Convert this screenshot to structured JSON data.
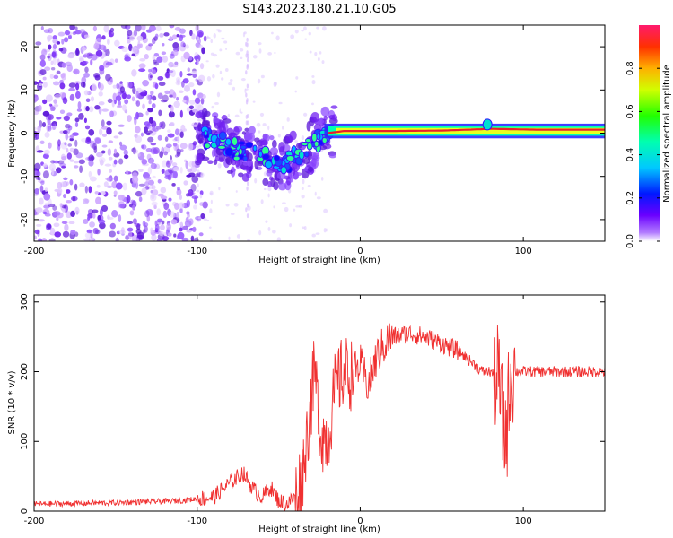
{
  "title": "S143.2023.180.21.10.G05",
  "colors": {
    "snr_line": "#f03030",
    "ridge": "#e8202a",
    "spectro_dot": "#7a20f0",
    "frame": "#000000"
  },
  "chart_data": [
    {
      "type": "heatmap",
      "xlabel": "Height of straight line (km)",
      "ylabel": "Frequency (Hz)",
      "xlim": [
        -200,
        150
      ],
      "ylim": [
        -25,
        25
      ],
      "xticks": [
        -200,
        -100,
        0,
        100
      ],
      "xtick_labels": [
        "-200",
        "-100",
        "0",
        "100"
      ],
      "yticks": [
        -20,
        -10,
        0,
        10,
        20
      ],
      "ytick_labels": [
        "-20",
        "-10",
        "0",
        "10",
        "20"
      ],
      "ridge": [
        {
          "x": -95,
          "y": -1
        },
        {
          "x": -85,
          "y": -2
        },
        {
          "x": -75,
          "y": -4
        },
        {
          "x": -65,
          "y": -5
        },
        {
          "x": -55,
          "y": -6
        },
        {
          "x": -45,
          "y": -7
        },
        {
          "x": -38,
          "y": -5
        },
        {
          "x": -30,
          "y": -3
        },
        {
          "x": -20,
          "y": 0
        },
        {
          "x": -10,
          "y": 0.5
        },
        {
          "x": 0,
          "y": 0.5
        },
        {
          "x": 20,
          "y": 0.5
        },
        {
          "x": 50,
          "y": 0.6
        },
        {
          "x": 80,
          "y": 1
        },
        {
          "x": 110,
          "y": 0.8
        },
        {
          "x": 150,
          "y": 0.8
        }
      ],
      "colorbar": {
        "label": "Normalized spectral amplitude",
        "range": [
          0,
          1
        ],
        "ticks": [
          0.0,
          0.2,
          0.4,
          0.6,
          0.8
        ],
        "tick_labels": [
          "0.0",
          "0.2",
          "0.4",
          "0.6",
          "0.8"
        ]
      }
    },
    {
      "type": "line",
      "xlabel": "Height of straight line (km)",
      "ylabel": "SNR (10 * v/v)",
      "xlim": [
        -200,
        150
      ],
      "ylim": [
        0,
        310
      ],
      "xticks": [
        -200,
        -100,
        0,
        100
      ],
      "xtick_labels": [
        "-200",
        "-100",
        "0",
        "100"
      ],
      "yticks": [
        0,
        100,
        200,
        300
      ],
      "ytick_labels": [
        "0",
        "100",
        "200",
        "300"
      ],
      "x": [
        -200,
        -150,
        -110,
        -90,
        -80,
        -72,
        -65,
        -60,
        -55,
        -50,
        -45,
        -40,
        -36,
        -32,
        -28,
        -24,
        -20,
        -15,
        -10,
        -5,
        0,
        5,
        10,
        15,
        20,
        30,
        40,
        50,
        60,
        70,
        75,
        80,
        85,
        88,
        90,
        92,
        95,
        100,
        110,
        120,
        130,
        140,
        150
      ],
      "values": [
        10,
        12,
        15,
        20,
        40,
        55,
        30,
        20,
        35,
        15,
        10,
        20,
        45,
        120,
        200,
        110,
        105,
        180,
        200,
        195,
        210,
        180,
        220,
        240,
        250,
        255,
        250,
        240,
        230,
        210,
        200,
        200,
        190,
        110,
        120,
        200,
        200,
        200,
        200,
        200,
        200,
        200,
        200
      ]
    }
  ]
}
